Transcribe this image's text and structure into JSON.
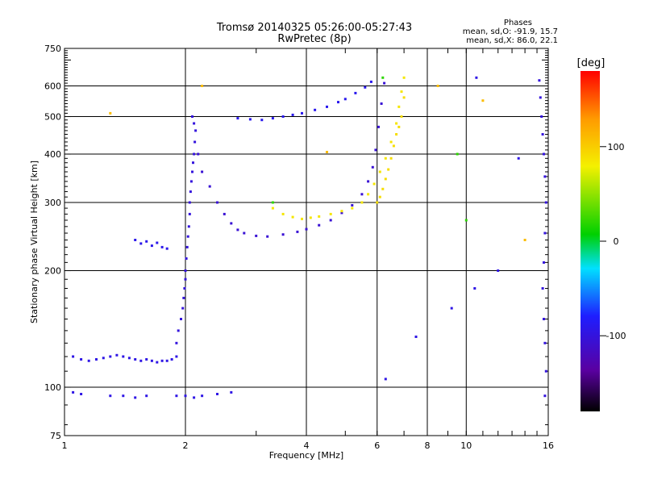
{
  "chart_data": {
    "type": "scatter",
    "title": "Tromsø 20140325 05:26:00-05:27:43",
    "subtitle": "RwPretec (8p)",
    "xlabel": "Frequency [MHz]",
    "ylabel": "Stationary phase Virtual Height [km]",
    "xscale": "log",
    "yscale": "log",
    "xlim": [
      1,
      16
    ],
    "ylim": [
      75,
      750
    ],
    "xticks": [
      1,
      2,
      4,
      6,
      8,
      10,
      16
    ],
    "xtick_labels": [
      "1",
      "2",
      "4",
      "6",
      "8",
      "10",
      "16"
    ],
    "yticks": [
      75,
      100,
      200,
      300,
      400,
      500,
      600,
      750
    ],
    "ytick_labels": [
      "75",
      "100",
      "200",
      "300",
      "400",
      "500",
      "600",
      "750"
    ],
    "grid": true,
    "colorbar": {
      "label": "[deg]",
      "range": [
        -180,
        180
      ],
      "ticks": [
        100,
        0,
        -100
      ],
      "tick_labels": [
        "100",
        "0",
        "-100"
      ]
    },
    "stats": {
      "heading": "Phases",
      "line_o": "mean, sd,O: -91.9, 15.7",
      "line_x": "mean, sd,X:  86.0, 22.1"
    },
    "series": [
      {
        "phase": -95,
        "points": [
          [
            1.05,
            120
          ],
          [
            1.1,
            118
          ],
          [
            1.15,
            117
          ],
          [
            1.2,
            118
          ],
          [
            1.25,
            119
          ],
          [
            1.3,
            120
          ],
          [
            1.35,
            121
          ],
          [
            1.4,
            120
          ],
          [
            1.45,
            119
          ],
          [
            1.5,
            118
          ],
          [
            1.55,
            117
          ],
          [
            1.6,
            118
          ],
          [
            1.65,
            117
          ],
          [
            1.7,
            116
          ],
          [
            1.75,
            117
          ],
          [
            1.8,
            117
          ],
          [
            1.85,
            118
          ],
          [
            1.9,
            120
          ]
        ]
      },
      {
        "phase": -100,
        "points": [
          [
            1.9,
            130
          ],
          [
            1.92,
            140
          ],
          [
            1.95,
            150
          ],
          [
            1.97,
            160
          ],
          [
            1.98,
            170
          ],
          [
            1.99,
            180
          ],
          [
            2.0,
            190
          ],
          [
            2.0,
            200
          ],
          [
            2.01,
            215
          ],
          [
            2.02,
            230
          ],
          [
            2.03,
            245
          ],
          [
            2.04,
            260
          ],
          [
            2.05,
            280
          ],
          [
            2.05,
            300
          ],
          [
            2.06,
            320
          ],
          [
            2.07,
            340
          ],
          [
            2.08,
            360
          ],
          [
            2.09,
            380
          ],
          [
            2.1,
            400
          ],
          [
            2.11,
            430
          ],
          [
            2.12,
            460
          ],
          [
            2.1,
            480
          ],
          [
            2.08,
            500
          ]
        ]
      },
      {
        "phase": -105,
        "points": [
          [
            2.15,
            400
          ],
          [
            2.2,
            360
          ],
          [
            2.3,
            330
          ],
          [
            2.4,
            300
          ],
          [
            2.5,
            280
          ],
          [
            2.6,
            265
          ],
          [
            2.7,
            255
          ],
          [
            2.8,
            250
          ],
          [
            3.0,
            246
          ],
          [
            3.2,
            245
          ],
          [
            3.5,
            248
          ],
          [
            3.8,
            252
          ],
          [
            4.0,
            256
          ],
          [
            4.3,
            262
          ],
          [
            4.6,
            270
          ],
          [
            4.9,
            282
          ],
          [
            5.2,
            295
          ],
          [
            5.5,
            315
          ],
          [
            5.7,
            340
          ],
          [
            5.85,
            370
          ],
          [
            5.95,
            410
          ],
          [
            6.05,
            470
          ],
          [
            6.15,
            540
          ],
          [
            6.25,
            610
          ]
        ]
      },
      {
        "phase": -90,
        "points": [
          [
            2.7,
            495
          ],
          [
            2.9,
            492
          ],
          [
            3.1,
            490
          ],
          [
            3.3,
            495
          ],
          [
            3.5,
            500
          ],
          [
            3.7,
            505
          ],
          [
            3.9,
            510
          ],
          [
            4.2,
            520
          ],
          [
            4.5,
            530
          ],
          [
            4.8,
            545
          ],
          [
            5.0,
            555
          ],
          [
            5.3,
            575
          ],
          [
            5.6,
            595
          ],
          [
            5.8,
            615
          ]
        ]
      },
      {
        "phase": -95,
        "points": [
          [
            1.05,
            97
          ],
          [
            1.1,
            96
          ],
          [
            1.3,
            95
          ],
          [
            1.4,
            95
          ],
          [
            1.5,
            94
          ],
          [
            1.6,
            95
          ],
          [
            1.9,
            95
          ],
          [
            2.0,
            95
          ],
          [
            2.1,
            94
          ],
          [
            2.2,
            95
          ],
          [
            2.4,
            96
          ],
          [
            2.6,
            97
          ]
        ]
      },
      {
        "phase": -92,
        "points": [
          [
            1.5,
            240
          ],
          [
            1.55,
            235
          ],
          [
            1.6,
            238
          ],
          [
            1.65,
            232
          ],
          [
            1.7,
            236
          ],
          [
            1.75,
            230
          ],
          [
            1.8,
            228
          ]
        ]
      },
      {
        "phase": 85,
        "points": [
          [
            3.3,
            290
          ],
          [
            3.5,
            280
          ],
          [
            3.7,
            275
          ],
          [
            3.9,
            272
          ],
          [
            4.1,
            274
          ],
          [
            4.3,
            276
          ],
          [
            4.6,
            280
          ],
          [
            4.9,
            285
          ],
          [
            5.2,
            290
          ],
          [
            5.5,
            300
          ],
          [
            5.7,
            315
          ],
          [
            5.9,
            335
          ],
          [
            6.1,
            360
          ],
          [
            6.3,
            390
          ],
          [
            6.5,
            430
          ],
          [
            6.7,
            480
          ],
          [
            6.8,
            530
          ],
          [
            6.9,
            580
          ],
          [
            7.0,
            630
          ]
        ]
      },
      {
        "phase": 90,
        "points": [
          [
            6.0,
            300
          ],
          [
            6.1,
            310
          ],
          [
            6.2,
            325
          ],
          [
            6.3,
            345
          ],
          [
            6.4,
            365
          ],
          [
            6.5,
            390
          ],
          [
            6.6,
            420
          ],
          [
            6.7,
            450
          ],
          [
            6.8,
            470
          ],
          [
            6.9,
            500
          ],
          [
            7.0,
            560
          ]
        ]
      },
      {
        "phase": -100,
        "points": [
          [
            15.2,
            620
          ],
          [
            15.3,
            560
          ],
          [
            15.4,
            500
          ],
          [
            15.5,
            450
          ],
          [
            15.6,
            400
          ],
          [
            15.7,
            350
          ],
          [
            15.8,
            300
          ],
          [
            15.7,
            250
          ],
          [
            15.6,
            210
          ],
          [
            15.5,
            180
          ],
          [
            15.6,
            150
          ],
          [
            15.7,
            130
          ],
          [
            15.8,
            110
          ],
          [
            15.7,
            95
          ]
        ]
      },
      {
        "phase": -95,
        "points": [
          [
            6.3,
            105
          ],
          [
            7.5,
            135
          ],
          [
            9.2,
            160
          ],
          [
            10.5,
            180
          ],
          [
            10.6,
            630
          ],
          [
            12.0,
            200
          ],
          [
            13.5,
            390
          ]
        ]
      },
      {
        "phase": 20,
        "points": [
          [
            10.0,
            270
          ],
          [
            9.5,
            400
          ],
          [
            6.2,
            630
          ],
          [
            3.3,
            300
          ]
        ]
      },
      {
        "phase": 110,
        "points": [
          [
            1.3,
            510
          ],
          [
            2.2,
            600
          ],
          [
            4.5,
            405
          ],
          [
            8.5,
            600
          ],
          [
            11.0,
            550
          ],
          [
            14.0,
            240
          ]
        ]
      }
    ]
  }
}
